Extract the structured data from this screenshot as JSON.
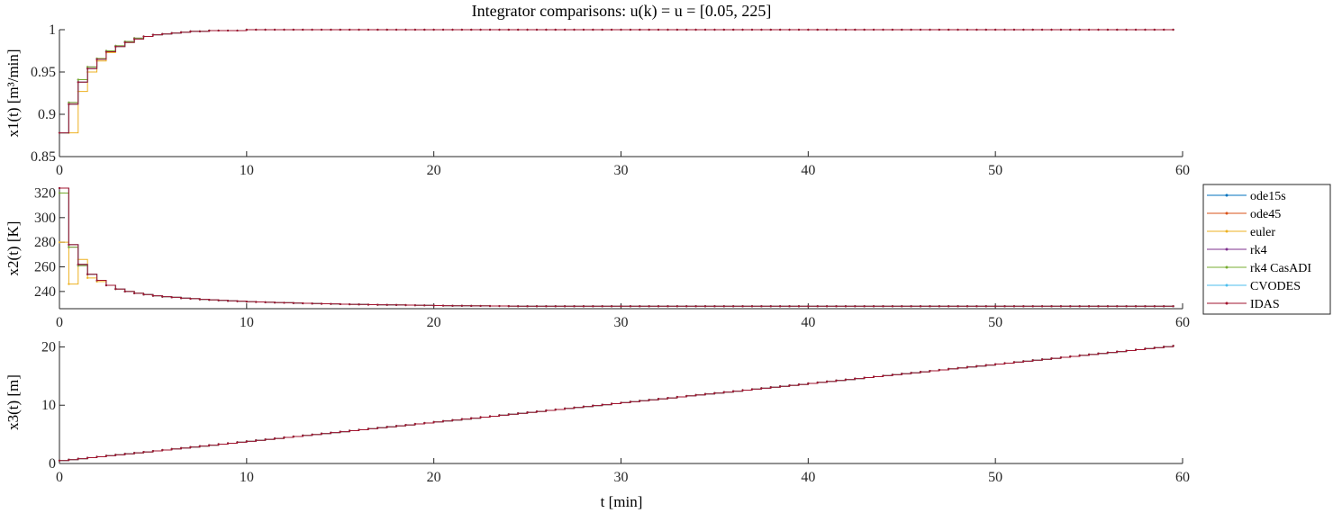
{
  "chart_data": {
    "type": "line",
    "title": "Integrator comparisons: u(k) = u = [0.05, 225]",
    "xlabel": "t [min]",
    "legend": {
      "placement": "right",
      "entries": [
        {
          "name": "ode15s",
          "color": "#0072BD"
        },
        {
          "name": "ode45",
          "color": "#D95319"
        },
        {
          "name": "euler",
          "color": "#EDB120"
        },
        {
          "name": "rk4",
          "color": "#7E2F8E"
        },
        {
          "name": "rk4 CasADI",
          "color": "#77AC30"
        },
        {
          "name": "CVODES",
          "color": "#4DBEEE"
        },
        {
          "name": "IDAS",
          "color": "#A2142F"
        }
      ]
    },
    "sample_time": 0.5,
    "xlim": [
      0,
      60
    ],
    "xticks": [
      "0",
      "10",
      "20",
      "30",
      "40",
      "50",
      "60"
    ],
    "subplots": [
      {
        "ylabel": "x1(t) [m³/min]",
        "ylim": [
          0.85,
          1
        ],
        "yticks": [
          "0.85",
          "0.9",
          "0.95",
          "1"
        ],
        "series": [
          {
            "name": "ode15s",
            "values": [
              0.878,
              0.912,
              0.938,
              0.954,
              0.965,
              0.974,
              0.98,
              0.985,
              0.989,
              0.992,
              0.994,
              0.995,
              0.996,
              0.997,
              0.998,
              0.998,
              0.999,
              0.999,
              0.999,
              0.999,
              1.0
            ]
          },
          {
            "name": "ode45",
            "values": [
              0.878,
              0.912,
              0.938,
              0.954,
              0.965,
              0.974,
              0.98,
              0.985,
              0.989,
              0.992,
              0.994,
              0.995,
              0.996,
              0.997,
              0.998,
              0.998,
              0.999,
              0.999,
              0.999,
              0.999,
              1.0
            ]
          },
          {
            "name": "euler",
            "values": [
              0.878,
              0.878,
              0.927,
              0.95,
              0.963,
              0.973,
              0.98,
              0.985,
              0.989,
              0.992,
              0.994,
              0.995,
              0.996,
              0.997,
              0.998,
              0.998,
              0.999,
              0.999,
              0.999,
              0.999,
              1.0
            ]
          },
          {
            "name": "rk4",
            "values": [
              0.878,
              0.914,
              0.941,
              0.956,
              0.966,
              0.975,
              0.981,
              0.986,
              0.99,
              0.992,
              0.994,
              0.995,
              0.996,
              0.997,
              0.998,
              0.998,
              0.999,
              0.999,
              0.999,
              0.999,
              1.0
            ]
          },
          {
            "name": "rk4 CasADI",
            "values": [
              0.878,
              0.914,
              0.941,
              0.956,
              0.966,
              0.975,
              0.981,
              0.986,
              0.99,
              0.992,
              0.994,
              0.995,
              0.996,
              0.997,
              0.998,
              0.998,
              0.999,
              0.999,
              0.999,
              0.999,
              1.0
            ]
          },
          {
            "name": "CVODES",
            "values": [
              0.878,
              0.912,
              0.938,
              0.954,
              0.965,
              0.974,
              0.98,
              0.985,
              0.989,
              0.992,
              0.994,
              0.995,
              0.996,
              0.997,
              0.998,
              0.998,
              0.999,
              0.999,
              0.999,
              0.999,
              1.0
            ]
          },
          {
            "name": "IDAS",
            "values": [
              0.878,
              0.912,
              0.938,
              0.954,
              0.965,
              0.974,
              0.98,
              0.985,
              0.989,
              0.992,
              0.994,
              0.995,
              0.996,
              0.997,
              0.998,
              0.998,
              0.999,
              0.999,
              0.999,
              0.999,
              1.0
            ]
          }
        ],
        "steady": 1.0
      },
      {
        "ylabel": "x2(t) [K]",
        "ylim": [
          226,
          324
        ],
        "yticks": [
          "240",
          "260",
          "280",
          "300",
          "320"
        ],
        "series": [
          {
            "name": "ode15s",
            "values": [
              324,
              278,
              262,
              254,
              249,
              245,
              242,
              240,
              238.5,
              237.5,
              236.5,
              235.8,
              235.2,
              234.6,
              234.1,
              233.6,
              233.2,
              232.8,
              232.4,
              232.1,
              231.8,
              231.5,
              231.2,
              231.0,
              230.8,
              230.6,
              230.4,
              230.2,
              230.0,
              229.9,
              229.7,
              229.6,
              229.5,
              229.3,
              229.2,
              229.1,
              229.0,
              228.9,
              228.8,
              228.7,
              228.6,
              228.5,
              228.4,
              228.35,
              228.3,
              228.25,
              228.2,
              228.15,
              228.1,
              228.05,
              228.0
            ]
          },
          {
            "name": "ode45",
            "values": [
              324,
              278,
              262,
              254,
              249,
              245,
              242,
              240,
              238.5,
              237.5,
              236.5,
              235.8,
              235.2,
              234.6,
              234.1,
              233.6,
              233.2,
              232.8,
              232.4,
              232.1,
              231.8,
              231.5,
              231.2,
              231.0,
              230.8,
              230.6,
              230.4,
              230.2,
              230.0,
              229.9,
              229.7,
              229.6,
              229.5,
              229.3,
              229.2,
              229.1,
              229.0,
              228.9,
              228.8,
              228.7,
              228.6,
              228.5,
              228.4,
              228.35,
              228.3,
              228.25,
              228.2,
              228.15,
              228.1,
              228.05,
              228.0
            ]
          },
          {
            "name": "euler",
            "values": [
              280,
              246,
              266,
              251,
              248,
              245,
              242,
              240,
              238.5,
              237.5,
              236.5,
              235.8,
              235.2,
              234.6,
              234.1,
              233.6,
              233.2,
              232.8,
              232.4,
              232.1,
              231.8,
              231.5,
              231.2,
              231.0,
              230.8,
              230.6,
              230.4,
              230.2,
              230.0,
              229.9,
              229.7,
              229.6,
              229.5,
              229.3,
              229.2,
              229.1,
              229.0,
              228.9,
              228.8,
              228.7,
              228.6,
              228.5,
              228.4,
              228.35,
              228.3,
              228.25,
              228.2,
              228.15,
              228.1,
              228.05,
              228.0
            ]
          },
          {
            "name": "rk4",
            "values": [
              320,
              276,
              261,
              254,
              249,
              245,
              242,
              240,
              238.5,
              237.5,
              236.5,
              235.8,
              235.2,
              234.6,
              234.1,
              233.6,
              233.2,
              232.8,
              232.4,
              232.1,
              231.8,
              231.5,
              231.2,
              231.0,
              230.8,
              230.6,
              230.4,
              230.2,
              230.0,
              229.9,
              229.7,
              229.6,
              229.5,
              229.3,
              229.2,
              229.1,
              229.0,
              228.9,
              228.8,
              228.7,
              228.6,
              228.5,
              228.4,
              228.35,
              228.3,
              228.25,
              228.2,
              228.15,
              228.1,
              228.05,
              228.0
            ]
          },
          {
            "name": "rk4 CasADI",
            "values": [
              320,
              276,
              261,
              254,
              249,
              245,
              242,
              240,
              238.5,
              237.5,
              236.5,
              235.8,
              235.2,
              234.6,
              234.1,
              233.6,
              233.2,
              232.8,
              232.4,
              232.1,
              231.8,
              231.5,
              231.2,
              231.0,
              230.8,
              230.6,
              230.4,
              230.2,
              230.0,
              229.9,
              229.7,
              229.6,
              229.5,
              229.3,
              229.2,
              229.1,
              229.0,
              228.9,
              228.8,
              228.7,
              228.6,
              228.5,
              228.4,
              228.35,
              228.3,
              228.25,
              228.2,
              228.15,
              228.1,
              228.05,
              228.0
            ]
          },
          {
            "name": "CVODES",
            "values": [
              324,
              278,
              262,
              254,
              249,
              245,
              242,
              240,
              238.5,
              237.5,
              236.5,
              235.8,
              235.2,
              234.6,
              234.1,
              233.6,
              233.2,
              232.8,
              232.4,
              232.1,
              231.8,
              231.5,
              231.2,
              231.0,
              230.8,
              230.6,
              230.4,
              230.2,
              230.0,
              229.9,
              229.7,
              229.6,
              229.5,
              229.3,
              229.2,
              229.1,
              229.0,
              228.9,
              228.8,
              228.7,
              228.6,
              228.5,
              228.4,
              228.35,
              228.3,
              228.25,
              228.2,
              228.15,
              228.1,
              228.05,
              228.0
            ]
          },
          {
            "name": "IDAS",
            "values": [
              324,
              278,
              262,
              254,
              249,
              245,
              242,
              240,
              238.5,
              237.5,
              236.5,
              235.8,
              235.2,
              234.6,
              234.1,
              233.6,
              233.2,
              232.8,
              232.4,
              232.1,
              231.8,
              231.5,
              231.2,
              231.0,
              230.8,
              230.6,
              230.4,
              230.2,
              230.0,
              229.9,
              229.7,
              229.6,
              229.5,
              229.3,
              229.2,
              229.1,
              229.0,
              228.9,
              228.8,
              228.7,
              228.6,
              228.5,
              228.4,
              228.35,
              228.3,
              228.25,
              228.2,
              228.15,
              228.1,
              228.05,
              228.0
            ]
          }
        ],
        "steady": 228.0
      },
      {
        "ylabel": "x3(t) [m]",
        "ylim": [
          0,
          21
        ],
        "yticks": [
          "0",
          "10",
          "20"
        ],
        "linear": {
          "start": 0.5,
          "end": 20.2
        },
        "series_note_all_equal": true
      }
    ]
  }
}
